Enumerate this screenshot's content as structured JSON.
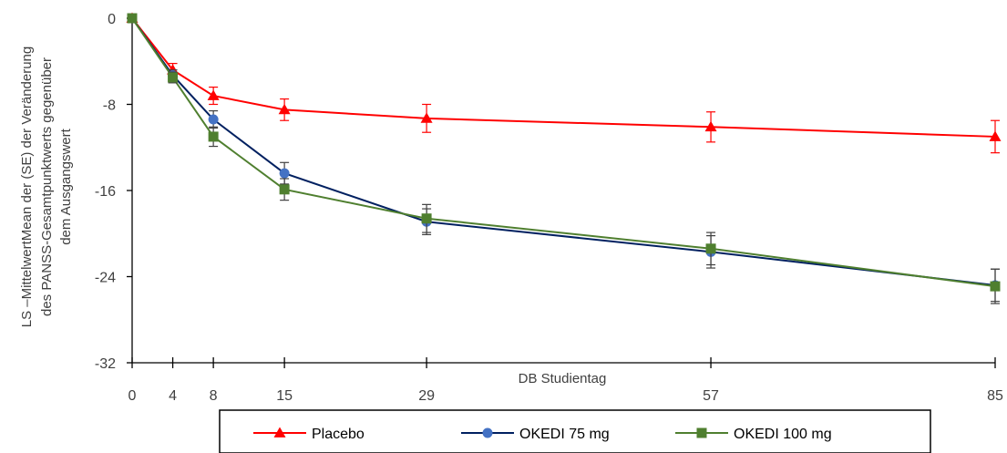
{
  "chart_data": {
    "type": "line",
    "xlabel": "DB Studientag",
    "ylabel_lines": [
      "LS –MittelwertMean der (SE) der Veränderung",
      "des PANSS-Gesamtpunktwerts  gegenüber",
      "dem Ausgangswert"
    ],
    "x": [
      0,
      4,
      8,
      15,
      29,
      57,
      85
    ],
    "x_tick_labels": [
      "0",
      "4",
      "8",
      "15",
      "29",
      "57",
      "85"
    ],
    "xlim": [
      0,
      85
    ],
    "ylim": [
      -32,
      0
    ],
    "y_ticks": [
      0,
      -8,
      -16,
      -24,
      -32
    ],
    "y_tick_labels": [
      "0",
      "-8",
      "-16",
      "-24",
      "-32"
    ],
    "legend_position": "bottom",
    "series": [
      {
        "name": "Placebo",
        "color": "#ff0000",
        "marker": "triangle",
        "values": [
          0,
          -4.8,
          -7.2,
          -8.5,
          -9.3,
          -10.1,
          -11.0
        ],
        "errors": [
          0,
          0.6,
          0.8,
          1.0,
          1.3,
          1.4,
          1.5
        ]
      },
      {
        "name": "OKEDI 75 mg",
        "color": "#002060",
        "marker": "circle",
        "values": [
          0,
          -5.3,
          -9.4,
          -14.4,
          -18.9,
          -21.7,
          -24.8
        ],
        "errors": [
          0,
          0.5,
          0.8,
          1.0,
          1.2,
          1.5,
          1.5
        ]
      },
      {
        "name": "OKEDI 100 mg",
        "color": "#4f7f2f",
        "marker": "square",
        "values": [
          0,
          -5.5,
          -11.0,
          -15.9,
          -18.6,
          -21.4,
          -24.9
        ],
        "errors": [
          0,
          0.5,
          0.9,
          1.0,
          1.3,
          1.5,
          1.6
        ]
      }
    ]
  }
}
